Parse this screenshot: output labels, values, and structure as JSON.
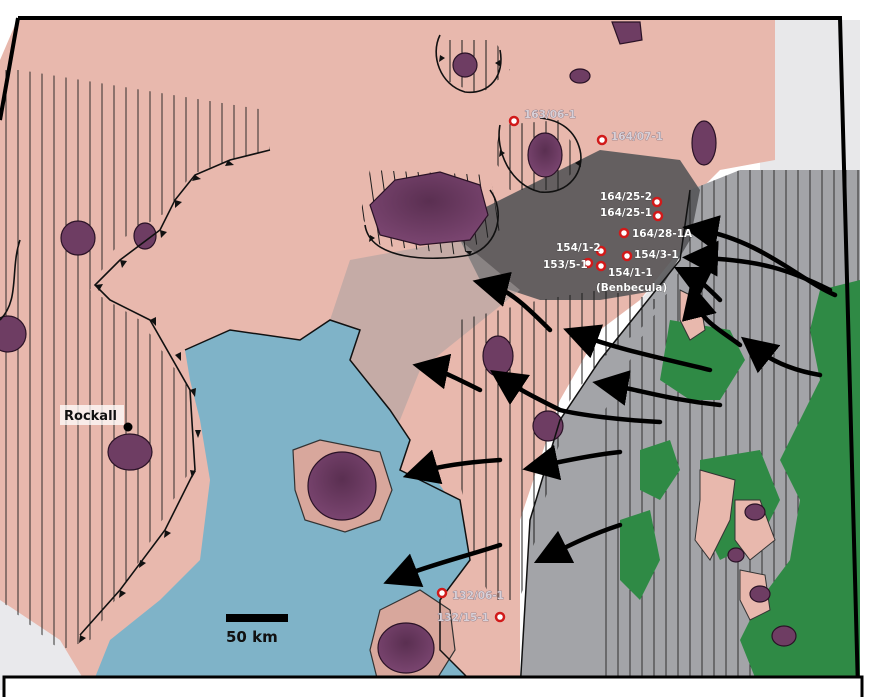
{
  "map": {
    "colors": {
      "pink_basin": "#e8b8ad",
      "blue_basin": "#7fb3c8",
      "grey_shelf": "#9a9a9e",
      "land_green": "#2f8a45",
      "intrusion_purple": "#6e3d63",
      "dark_shadow": "#3b3b3d",
      "hillshade": "#e9e9ea",
      "well_marker": "#d11a1a"
    },
    "wells": [
      {
        "label": "163/06-1"
      },
      {
        "label": "164/07-1"
      },
      {
        "label": "164/25-2"
      },
      {
        "label": "164/25-1"
      },
      {
        "label": "164/28-1A"
      },
      {
        "label": "154/1-2"
      },
      {
        "label": "154/3-1"
      },
      {
        "label": "153/5-1"
      },
      {
        "label": "154/1-1"
      },
      {
        "label": "132/06-1"
      },
      {
        "label": "132/15-1"
      }
    ],
    "benbecula_label": "(Benbecula)",
    "rockall_label": "Rockall",
    "scale_label": "50 km"
  }
}
